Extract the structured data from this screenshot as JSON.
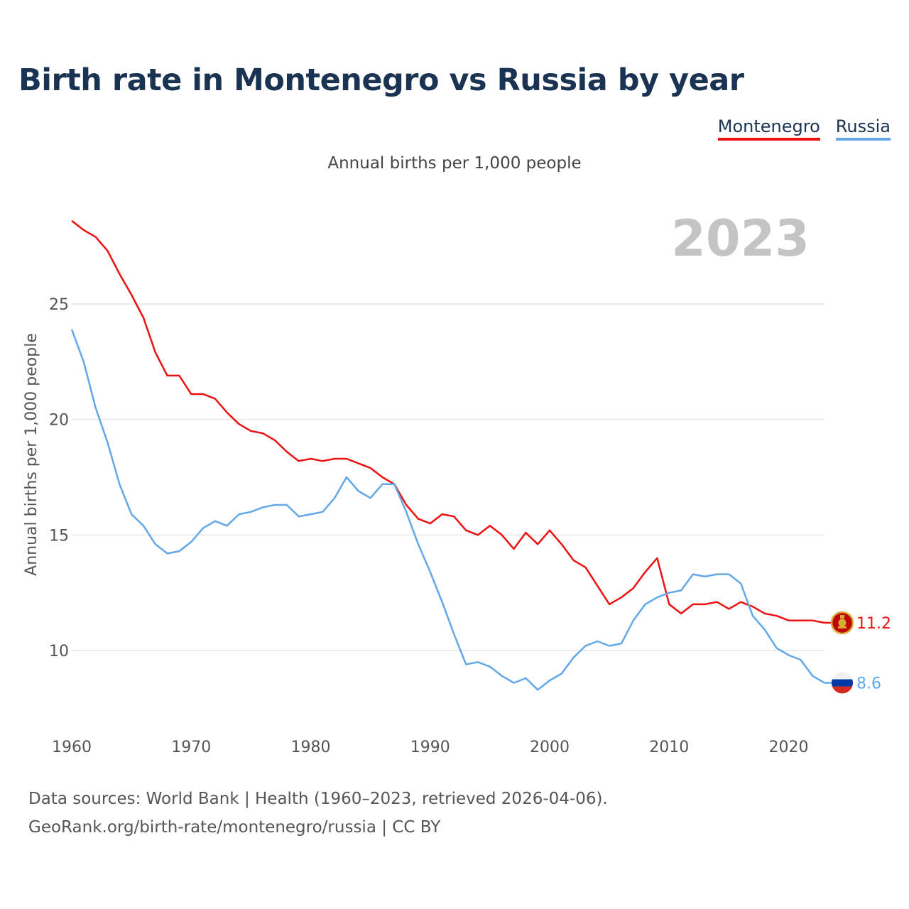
{
  "page": {
    "title": "Birth rate in Montenegro vs Russia by year",
    "subtitle": "Annual births per 1,000 people",
    "footer_line1": "Data sources: World Bank | Health (1960–2023, retrieved 2026-04-06).",
    "footer_line2": "GeoRank.org/birth-rate/montenegro/russia | CC BY",
    "year_display": "2023"
  },
  "colors": {
    "montenegro": "#ee1111",
    "russia": "#62a8e8",
    "grid": "#e6e6e6",
    "title": "#1b3352"
  },
  "chart_data": {
    "type": "line",
    "title": "Birth rate in Montenegro vs Russia by year",
    "subtitle": "Annual births per 1,000 people",
    "xlabel": "",
    "ylabel": "Annual births per 1,000 people",
    "xlim": [
      1960,
      2023
    ],
    "ylim": [
      7,
      29
    ],
    "x_ticks": [
      1960,
      1970,
      1980,
      1990,
      2000,
      2010,
      2020
    ],
    "y_ticks": [
      10,
      15,
      20,
      25
    ],
    "grid": true,
    "legend_position": "top-right",
    "x": [
      1960,
      1961,
      1962,
      1963,
      1964,
      1965,
      1966,
      1967,
      1968,
      1969,
      1970,
      1971,
      1972,
      1973,
      1974,
      1975,
      1976,
      1977,
      1978,
      1979,
      1980,
      1981,
      1982,
      1983,
      1984,
      1985,
      1986,
      1987,
      1988,
      1989,
      1990,
      1991,
      1992,
      1993,
      1994,
      1995,
      1996,
      1997,
      1998,
      1999,
      2000,
      2001,
      2002,
      2003,
      2004,
      2005,
      2006,
      2007,
      2008,
      2009,
      2010,
      2011,
      2012,
      2013,
      2014,
      2015,
      2016,
      2017,
      2018,
      2019,
      2020,
      2021,
      2022,
      2023
    ],
    "series": [
      {
        "name": "Montenegro",
        "end_label": "11.2",
        "values": [
          28.6,
          28.2,
          27.9,
          27.3,
          26.3,
          25.4,
          24.4,
          22.9,
          21.9,
          21.9,
          21.1,
          21.1,
          20.9,
          20.3,
          19.8,
          19.5,
          19.4,
          19.1,
          18.6,
          18.2,
          18.3,
          18.2,
          18.3,
          18.3,
          18.1,
          17.9,
          17.5,
          17.2,
          16.3,
          15.7,
          15.5,
          15.9,
          15.8,
          15.2,
          15.0,
          15.4,
          15.0,
          14.4,
          15.1,
          14.6,
          15.2,
          14.6,
          13.9,
          13.6,
          12.8,
          12.0,
          12.3,
          12.7,
          13.4,
          14.0,
          12.0,
          11.6,
          12.0,
          12.0,
          12.1,
          11.8,
          12.1,
          11.9,
          11.6,
          11.5,
          11.3,
          11.3,
          11.3,
          11.2
        ]
      },
      {
        "name": "Russia",
        "end_label": "8.6",
        "values": [
          23.9,
          22.5,
          20.5,
          19.0,
          17.2,
          15.9,
          15.4,
          14.6,
          14.2,
          14.3,
          14.7,
          15.3,
          15.6,
          15.4,
          15.9,
          16.0,
          16.2,
          16.3,
          16.3,
          15.8,
          15.9,
          16.0,
          16.6,
          17.5,
          16.9,
          16.6,
          17.2,
          17.2,
          16.0,
          14.6,
          13.4,
          12.1,
          10.7,
          9.4,
          9.5,
          9.3,
          8.9,
          8.6,
          8.8,
          8.3,
          8.7,
          9.0,
          9.7,
          10.2,
          10.4,
          10.2,
          10.3,
          11.3,
          12.0,
          12.3,
          12.5,
          12.6,
          13.3,
          13.2,
          13.3,
          13.3,
          12.9,
          11.5,
          10.9,
          10.1,
          9.8,
          9.6,
          8.9,
          8.6
        ]
      }
    ]
  }
}
